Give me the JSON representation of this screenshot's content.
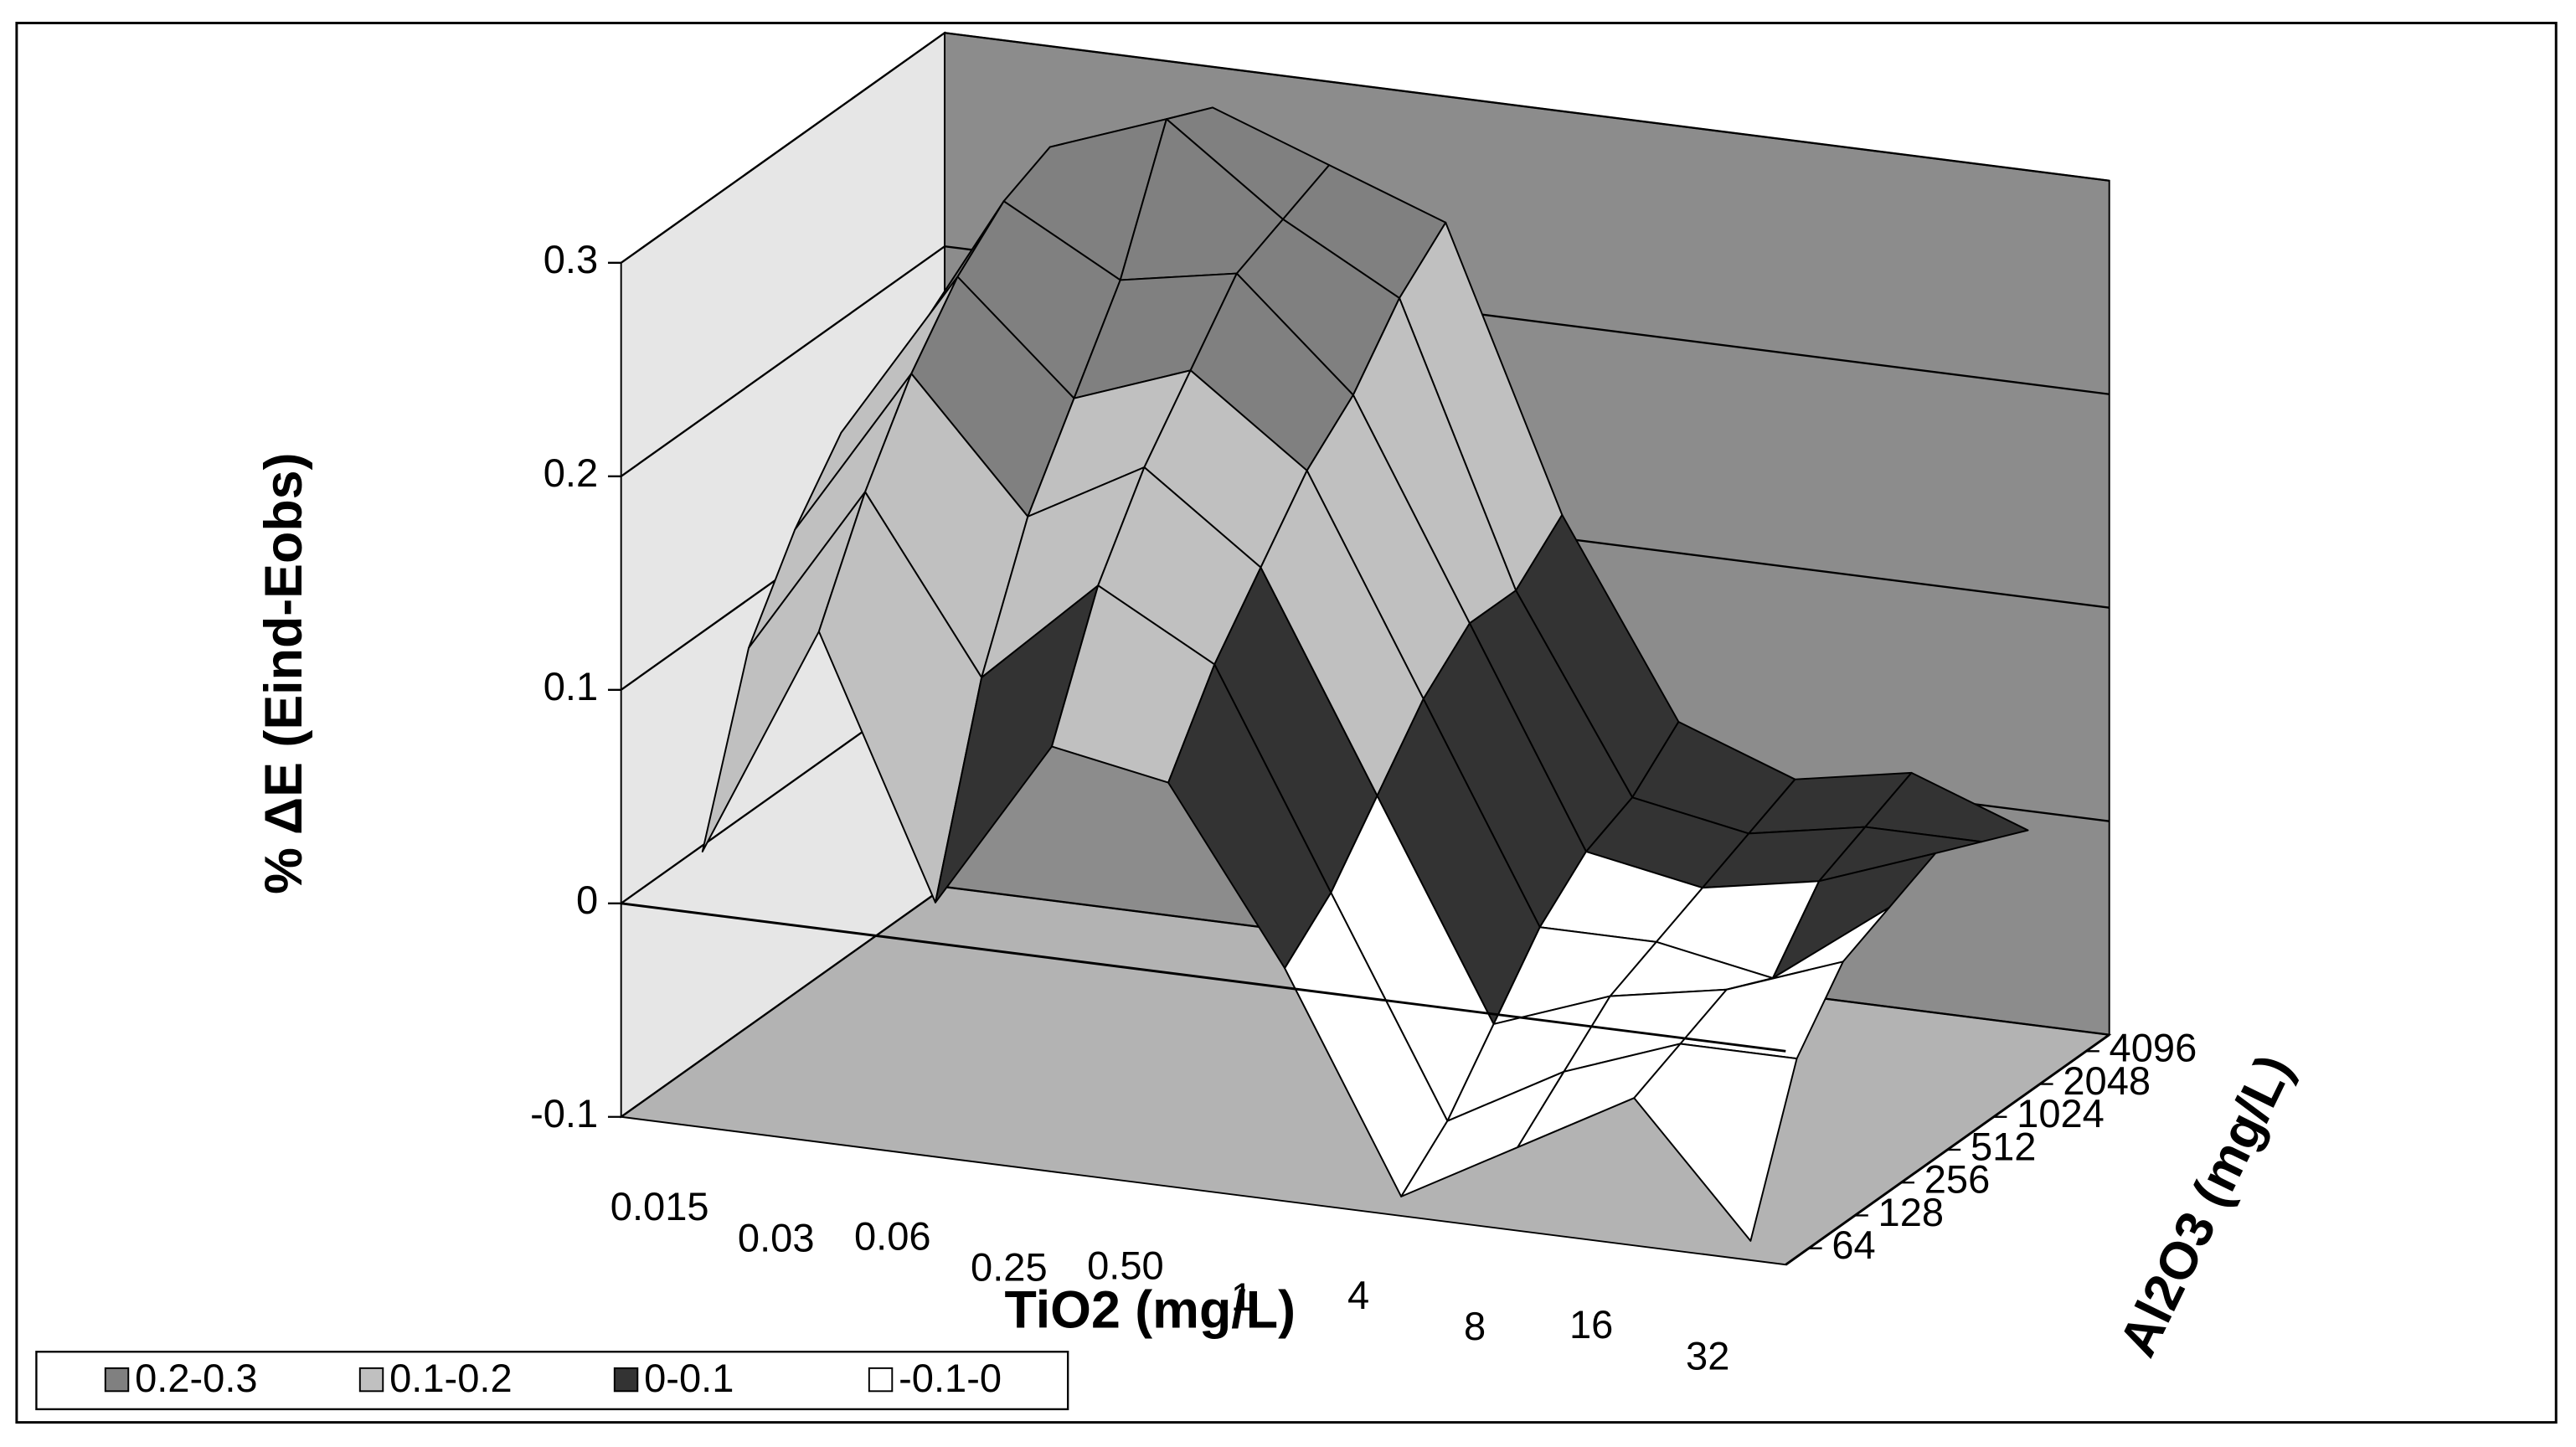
{
  "chart_data": {
    "type": "surface3d",
    "z_label": "% ΔE (Eind-Eobs)",
    "x_label": "TiO2 (mg/L)",
    "y_label": "Al2O3 (mg/L)",
    "x_categories": [
      "0.015",
      "0.03",
      "0.06",
      "0.25",
      "0.50",
      "1",
      "4",
      "8",
      "16",
      "32"
    ],
    "y_categories": [
      "64",
      "128",
      "256",
      "512",
      "1024",
      "2048",
      "4096"
    ],
    "values": [
      [
        0.02,
        0.13,
        0.01,
        0.09,
        0.08,
        0.0,
        -0.1,
        -0.07,
        -0.04,
        -0.1
      ],
      [
        0.1,
        0.18,
        0.1,
        0.15,
        0.12,
        0.02,
        -0.08,
        -0.05,
        -0.03,
        -0.03
      ],
      [
        0.14,
        0.22,
        0.16,
        0.19,
        0.15,
        0.05,
        -0.05,
        -0.03,
        -0.02,
        0.0
      ],
      [
        0.17,
        0.25,
        0.2,
        0.22,
        0.18,
        0.08,
        -0.02,
        -0.02,
        -0.03,
        0.01
      ],
      [
        0.18,
        0.27,
        0.24,
        0.25,
        0.2,
        0.1,
        0.0,
        -0.01,
        0.0,
        0.02
      ],
      [
        0.19,
        0.28,
        0.3,
        0.26,
        0.23,
        0.1,
        0.01,
        0.0,
        0.01,
        0.01
      ],
      [
        0.2,
        0.26,
        0.29,
        0.27,
        0.25,
        0.12,
        0.03,
        0.01,
        0.02,
        0.0
      ]
    ],
    "zlim": [
      -0.1,
      0.3
    ],
    "zticks": [
      -0.1,
      0,
      0.1,
      0.2,
      0.3
    ],
    "bands": [
      {
        "name": "0.2-0.3",
        "from": 0.2,
        "to": 0.3,
        "color": "#808080"
      },
      {
        "name": "0.1-0.2",
        "from": 0.1,
        "to": 0.2,
        "color": "#c0c0c0"
      },
      {
        "name": "0-0.1",
        "from": 0,
        "to": 0.1,
        "color": "#333333"
      },
      {
        "name": "-0.1-0",
        "from": -0.1,
        "to": 0,
        "color": "#ffffff"
      }
    ],
    "grid": true
  }
}
